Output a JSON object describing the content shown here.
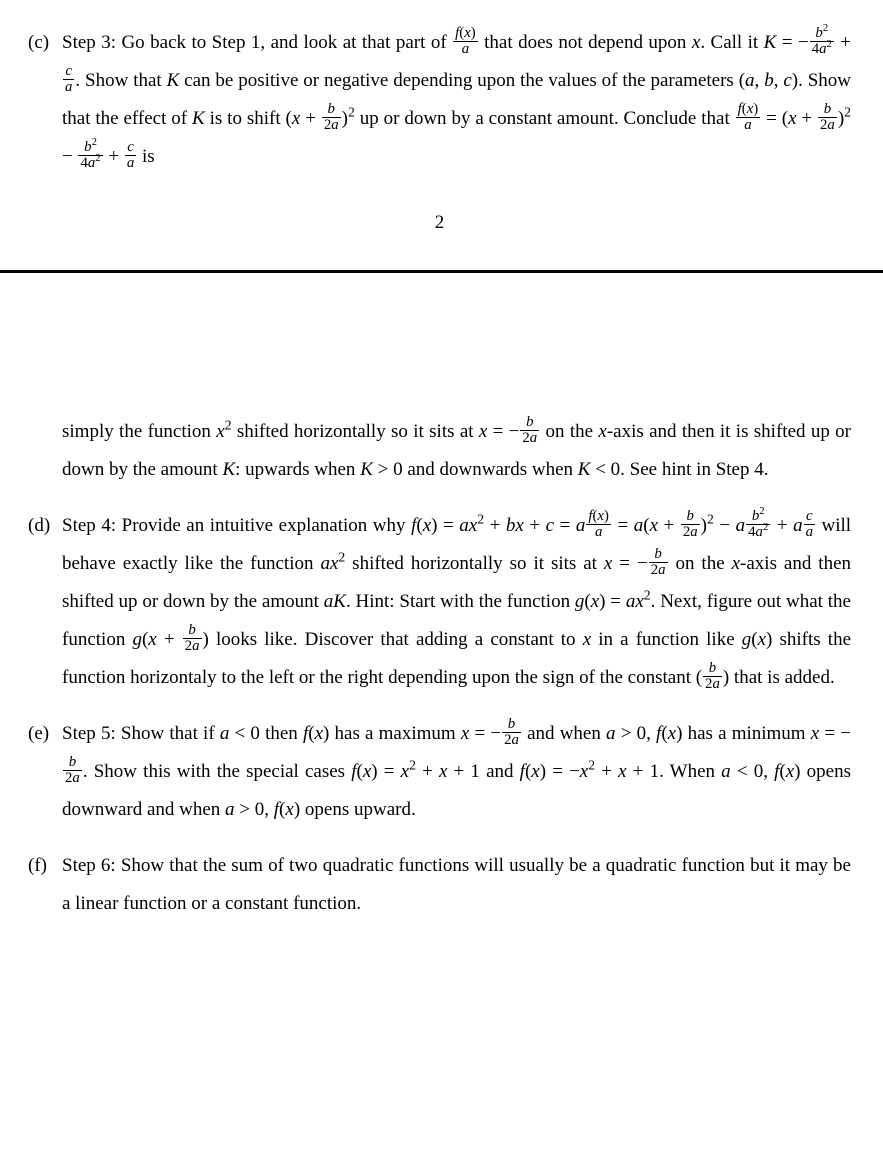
{
  "pageNumber": "2",
  "partC": {
    "label": "(c)",
    "top": "Step 3: Go back to Step 1, and look at that part of <span class=\"frac\"><span class=\"num\"><span class=\"it\">f</span>(<span class=\"it\">x</span>)</span><span class=\"den\"><span class=\"it\">a</span></span></span> that does not depend upon <span class=\"it\">x</span>. Call it <span class=\"it\">K</span> = &minus;<span class=\"frac\"><span class=\"num\"><span class=\"it\">b</span><span class=\"sup\">2</span></span><span class=\"den\">4<span class=\"it\">a</span><span class=\"sup\">2</span></span></span> + <span class=\"frac\"><span class=\"num\"><span class=\"it\">c</span></span><span class=\"den\"><span class=\"it\">a</span></span></span>. Show that <span class=\"it\">K</span> can be positive or negative depending upon the values of the parameters (<span class=\"it\">a</span>, <span class=\"it\">b</span>, <span class=\"it\">c</span>). Show that the effect of <span class=\"it\">K</span> is to shift (<span class=\"it\">x</span> + <span class=\"frac\"><span class=\"num\"><span class=\"it\">b</span></span><span class=\"den\">2<span class=\"it\">a</span></span></span>)<span class=\"sup\">2</span> up or down by a constant amount. Conclude that <span class=\"frac\"><span class=\"num\"><span class=\"it\">f</span>(<span class=\"it\">x</span>)</span><span class=\"den\"><span class=\"it\">a</span></span></span> = (<span class=\"it\">x</span> + <span class=\"frac\"><span class=\"num\"><span class=\"it\">b</span></span><span class=\"den\">2<span class=\"it\">a</span></span></span>)<span class=\"sup\">2</span> &minus; <span class=\"frac\"><span class=\"num\"><span class=\"it\">b</span><span class=\"sup\">2</span></span><span class=\"den\">4<span class=\"it\">a</span><span class=\"sup\">2</span></span></span> + <span class=\"frac\"><span class=\"num\"><span class=\"it\">c</span></span><span class=\"den\"><span class=\"it\">a</span></span></span> is",
    "cont": "simply the function <span class=\"it\">x</span><span class=\"sup\">2</span> shifted horizontally so it sits at <span class=\"it\">x</span> = &minus;<span class=\"frac\"><span class=\"num\"><span class=\"it\">b</span></span><span class=\"den\">2<span class=\"it\">a</span></span></span> on the <span class=\"it\">x</span>-axis and then it is shifted up or down by the amount <span class=\"it\">K</span>: upwards when <span class=\"it\">K</span> &gt; 0 and downwards when <span class=\"it\">K</span> &lt; 0. See hint in Step 4."
  },
  "partD": {
    "label": "(d)",
    "text": "Step 4: Provide an intuitive explanation why <span class=\"it\">f</span>(<span class=\"it\">x</span>) = <span class=\"it\">ax</span><span class=\"sup\">2</span> + <span class=\"it\">bx</span> + <span class=\"it\">c</span> = <span class=\"it\">a</span><span class=\"frac\"><span class=\"num\"><span class=\"it\">f</span>(<span class=\"it\">x</span>)</span><span class=\"den\"><span class=\"it\">a</span></span></span> = <span class=\"it\">a</span>(<span class=\"it\">x</span> + <span class=\"frac\"><span class=\"num\"><span class=\"it\">b</span></span><span class=\"den\">2<span class=\"it\">a</span></span></span>)<span class=\"sup\">2</span> &minus; <span class=\"it\">a</span><span class=\"frac\"><span class=\"num\"><span class=\"it\">b</span><span class=\"sup\">2</span></span><span class=\"den\">4<span class=\"it\">a</span><span class=\"sup\">2</span></span></span> + <span class=\"it\">a</span><span class=\"frac\"><span class=\"num\"><span class=\"it\">c</span></span><span class=\"den\"><span class=\"it\">a</span></span></span> will behave exactly like the function <span class=\"it\">ax</span><span class=\"sup\">2</span> shifted horizontally so it sits at <span class=\"it\">x</span> = &minus;<span class=\"frac\"><span class=\"num\"><span class=\"it\">b</span></span><span class=\"den\">2<span class=\"it\">a</span></span></span> on the <span class=\"it\">x</span>-axis and then shifted up or down by the amount <span class=\"it\">aK</span>. Hint: Start with the function <span class=\"it\">g</span>(<span class=\"it\">x</span>) = <span class=\"it\">ax</span><span class=\"sup\">2</span>. Next, figure out what the function <span class=\"it\">g</span>(<span class=\"it\">x</span> + <span class=\"frac\"><span class=\"num\"><span class=\"it\">b</span></span><span class=\"den\">2<span class=\"it\">a</span></span></span>) looks like. Discover that adding a constant to <span class=\"it\">x</span> in a function like <span class=\"it\">g</span>(<span class=\"it\">x</span>) shifts the function horizontaly to the left or the right depending upon the sign of the constant (<span class=\"frac\"><span class=\"num\"><span class=\"it\">b</span></span><span class=\"den\">2<span class=\"it\">a</span></span></span>) that is added."
  },
  "partE": {
    "label": "(e)",
    "text": "Step 5: Show that if <span class=\"it\">a</span> &lt; 0 then <span class=\"it\">f</span>(<span class=\"it\">x</span>) has a maximum <span class=\"it\">x</span> = &minus;<span class=\"frac\"><span class=\"num\"><span class=\"it\">b</span></span><span class=\"den\">2<span class=\"it\">a</span></span></span> and when <span class=\"it\">a</span> &gt; 0, <span class=\"it\">f</span>(<span class=\"it\">x</span>) has a minimum <span class=\"it\">x</span> = &minus;<span class=\"frac\"><span class=\"num\"><span class=\"it\">b</span></span><span class=\"den\">2<span class=\"it\">a</span></span></span>. Show this with the special cases <span class=\"it\">f</span>(<span class=\"it\">x</span>) = <span class=\"it\">x</span><span class=\"sup\">2</span> + <span class=\"it\">x</span> + 1 and <span class=\"it\">f</span>(<span class=\"it\">x</span>) = &minus;<span class=\"it\">x</span><span class=\"sup\">2</span> + <span class=\"it\">x</span> + 1. When <span class=\"it\">a</span> &lt; 0, <span class=\"it\">f</span>(<span class=\"it\">x</span>) opens downward and when <span class=\"it\">a</span> &gt; 0, <span class=\"it\">f</span>(<span class=\"it\">x</span>) opens upward."
  },
  "partF": {
    "label": "(f)",
    "text": "Step 6: Show that the sum of two quadratic functions will usually be a quadratic function but it may be a linear function or a constant function."
  }
}
